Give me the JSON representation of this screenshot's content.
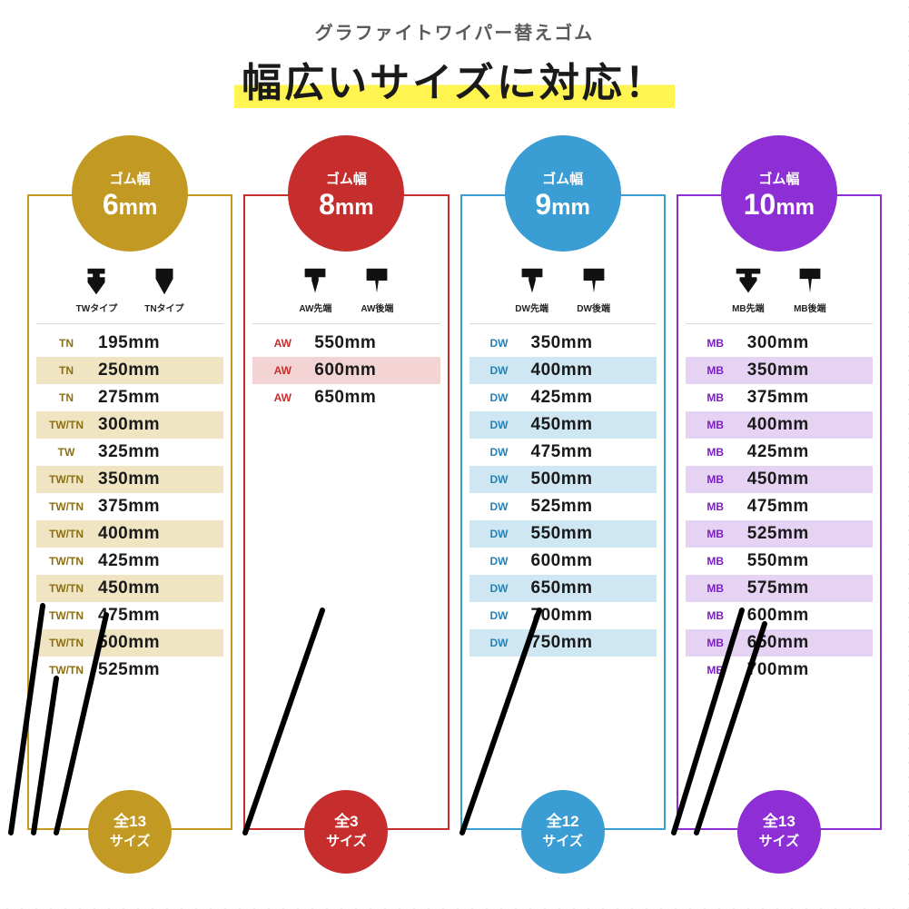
{
  "header": {
    "subtitle": "グラファイトワイパー替えゴム",
    "title": "幅広いサイズに対応！"
  },
  "columns": [
    {
      "id": "6mm",
      "label": "ゴム幅",
      "size_num": "6",
      "size_unit": "mm",
      "color": "#c29a23",
      "alt_bg": "#efe5c2",
      "icon1": "TWタイプ",
      "icon2": "TNタイプ",
      "rows": [
        {
          "code": "TN",
          "size": "195mm"
        },
        {
          "code": "TN",
          "size": "250mm"
        },
        {
          "code": "TN",
          "size": "275mm"
        },
        {
          "code": "TW/TN",
          "size": "300mm"
        },
        {
          "code": "TW",
          "size": "325mm"
        },
        {
          "code": "TW/TN",
          "size": "350mm"
        },
        {
          "code": "TW/TN",
          "size": "375mm"
        },
        {
          "code": "TW/TN",
          "size": "400mm"
        },
        {
          "code": "TW/TN",
          "size": "425mm"
        },
        {
          "code": "TW/TN",
          "size": "450mm"
        },
        {
          "code": "TW/TN",
          "size": "475mm"
        },
        {
          "code": "TW/TN",
          "size": "500mm"
        },
        {
          "code": "TW/TN",
          "size": "525mm"
        }
      ],
      "total": "全13",
      "total_label": "サイズ",
      "code_color": "#8c6f12",
      "wipers": 3
    },
    {
      "id": "8mm",
      "label": "ゴム幅",
      "size_num": "8",
      "size_unit": "mm",
      "color": "#c62e2e",
      "alt_bg": "#f3d3d3",
      "icon1": "AW先端",
      "icon2": "AW後端",
      "rows": [
        {
          "code": "AW",
          "size": "550mm"
        },
        {
          "code": "AW",
          "size": "600mm"
        },
        {
          "code": "AW",
          "size": "650mm"
        }
      ],
      "total": "全3",
      "total_label": "サイズ",
      "code_color": "#c62e2e",
      "wipers": 1
    },
    {
      "id": "9mm",
      "label": "ゴム幅",
      "size_num": "9",
      "size_unit": "mm",
      "color": "#3a9dd4",
      "alt_bg": "#cfe7f2",
      "icon1": "DW先端",
      "icon2": "DW後端",
      "rows": [
        {
          "code": "DW",
          "size": "350mm"
        },
        {
          "code": "DW",
          "size": "400mm"
        },
        {
          "code": "DW",
          "size": "425mm"
        },
        {
          "code": "DW",
          "size": "450mm"
        },
        {
          "code": "DW",
          "size": "475mm"
        },
        {
          "code": "DW",
          "size": "500mm"
        },
        {
          "code": "DW",
          "size": "525mm"
        },
        {
          "code": "DW",
          "size": "550mm"
        },
        {
          "code": "DW",
          "size": "600mm"
        },
        {
          "code": "DW",
          "size": "650mm"
        },
        {
          "code": "DW",
          "size": "700mm"
        },
        {
          "code": "DW",
          "size": "750mm"
        }
      ],
      "total": "全12",
      "total_label": "サイズ",
      "code_color": "#2681b5",
      "wipers": 1
    },
    {
      "id": "10mm",
      "label": "ゴム幅",
      "size_num": "10",
      "size_unit": "mm",
      "color": "#8e2fd6",
      "alt_bg": "#e6d3f3",
      "icon1": "MB先端",
      "icon2": "MB後端",
      "rows": [
        {
          "code": "MB",
          "size": "300mm"
        },
        {
          "code": "MB",
          "size": "350mm"
        },
        {
          "code": "MB",
          "size": "375mm"
        },
        {
          "code": "MB",
          "size": "400mm"
        },
        {
          "code": "MB",
          "size": "425mm"
        },
        {
          "code": "MB",
          "size": "450mm"
        },
        {
          "code": "MB",
          "size": "475mm"
        },
        {
          "code": "MB",
          "size": "525mm"
        },
        {
          "code": "MB",
          "size": "550mm"
        },
        {
          "code": "MB",
          "size": "575mm"
        },
        {
          "code": "MB",
          "size": "600mm"
        },
        {
          "code": "MB",
          "size": "650mm"
        },
        {
          "code": "MB",
          "size": "700mm"
        }
      ],
      "total": "全13",
      "total_label": "サイズ",
      "code_color": "#7a20c2",
      "wipers": 2
    }
  ]
}
